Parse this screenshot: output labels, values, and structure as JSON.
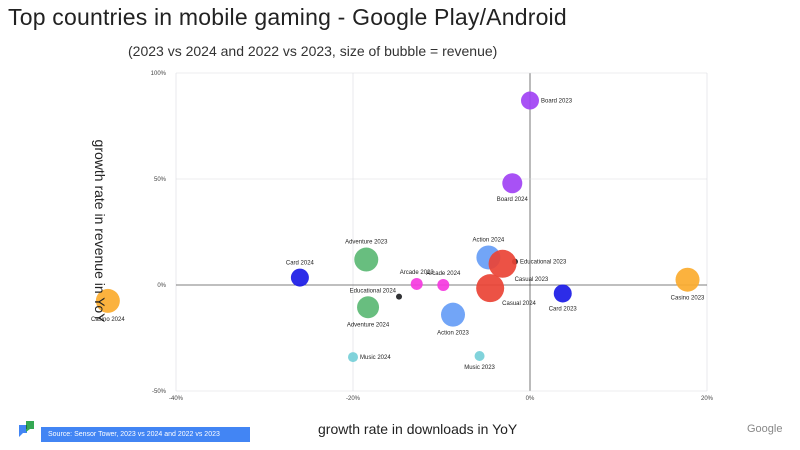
{
  "page": {
    "title": "Top countries in mobile gaming - Google Play/Android",
    "subtitle": "(2023 vs 2024 and 2022 vs 2023, size of bubble = revenue)",
    "source": "Source: Sensor Tower, 2023 vs 2024 and 2022 vs 2023",
    "brand": "Google",
    "logo_icon": "slides-logo-icon"
  },
  "chart_data": {
    "type": "scatter",
    "subtype": "bubble",
    "title": "Top countries in mobile gaming - Google Play/Android",
    "subtitle": "(2023 vs 2024 and 2022 vs 2023, size of bubble = revenue)",
    "xlabel": "growth rate in downloads in YoY",
    "ylabel": "growth rate in revenue in YoY",
    "xlim": [
      -0.4,
      0.2
    ],
    "ylim": [
      -0.5,
      1.0
    ],
    "x_ticks": [
      -0.4,
      -0.2,
      0,
      0.2
    ],
    "x_tick_labels": [
      "-40%",
      "-20%",
      "0%",
      "20%"
    ],
    "y_ticks": [
      -0.5,
      0,
      0.5,
      1.0
    ],
    "y_tick_labels": [
      "-50%",
      "0%",
      "50%",
      "100%"
    ],
    "grid": true,
    "points": [
      {
        "label": "Board 2023",
        "x": 0.0,
        "y": 0.87,
        "size": 9,
        "color": "#a142f4",
        "label_pos": "right"
      },
      {
        "label": "Board 2024",
        "x": -0.02,
        "y": 0.48,
        "size": 10,
        "color": "#a142f4",
        "label_pos": "below"
      },
      {
        "label": "Adventure 2023",
        "x": -0.185,
        "y": 0.12,
        "size": 12,
        "color": "#5bb974",
        "label_pos": "above"
      },
      {
        "label": "Action 2024",
        "x": -0.047,
        "y": 0.13,
        "size": 12,
        "color": "#669df6",
        "label_pos": "above"
      },
      {
        "label": "Educational 2023",
        "x": -0.017,
        "y": 0.11,
        "size": 3,
        "color": "#202124",
        "label_pos": "right"
      },
      {
        "label": "Casual 2023",
        "x": -0.031,
        "y": 0.1,
        "size": 14,
        "color": "#ea4335",
        "label_pos": "below-right"
      },
      {
        "label": "Card 2024",
        "x": -0.26,
        "y": 0.035,
        "size": 9,
        "color": "#1a1ae6",
        "label_pos": "above"
      },
      {
        "label": "Arcade 2023",
        "x": -0.128,
        "y": 0.005,
        "size": 6,
        "color": "#f538e0",
        "label_pos": "above"
      },
      {
        "label": "Arcade 2024",
        "x": -0.098,
        "y": 0.0,
        "size": 6,
        "color": "#f538e0",
        "label_pos": "above"
      },
      {
        "label": "Casino 2023",
        "x": 0.178,
        "y": 0.025,
        "size": 12,
        "color": "#fbab2e",
        "label_pos": "below"
      },
      {
        "label": "Casino 2024",
        "x": -0.477,
        "y": -0.075,
        "size": 12,
        "color": "#fbab2e",
        "label_pos": "below"
      },
      {
        "label": "Educational 2024",
        "x": -0.148,
        "y": -0.055,
        "size": 3,
        "color": "#202124",
        "label_pos": "above-left"
      },
      {
        "label": "Casual 2024",
        "x": -0.045,
        "y": -0.015,
        "size": 14,
        "color": "#ea4335",
        "label_pos": "below-right"
      },
      {
        "label": "Card 2023",
        "x": 0.037,
        "y": -0.04,
        "size": 9,
        "color": "#1a1ae6",
        "label_pos": "below"
      },
      {
        "label": "Adventure 2024",
        "x": -0.183,
        "y": -0.105,
        "size": 11,
        "color": "#5bb974",
        "label_pos": "below"
      },
      {
        "label": "Action 2023",
        "x": -0.087,
        "y": -0.14,
        "size": 12,
        "color": "#669df6",
        "label_pos": "below"
      },
      {
        "label": "Music 2024",
        "x": -0.2,
        "y": -0.34,
        "size": 5,
        "color": "#76cfd8",
        "label_pos": "right"
      },
      {
        "label": "Music 2023",
        "x": -0.057,
        "y": -0.335,
        "size": 5,
        "color": "#76cfd8",
        "label_pos": "below"
      }
    ]
  }
}
